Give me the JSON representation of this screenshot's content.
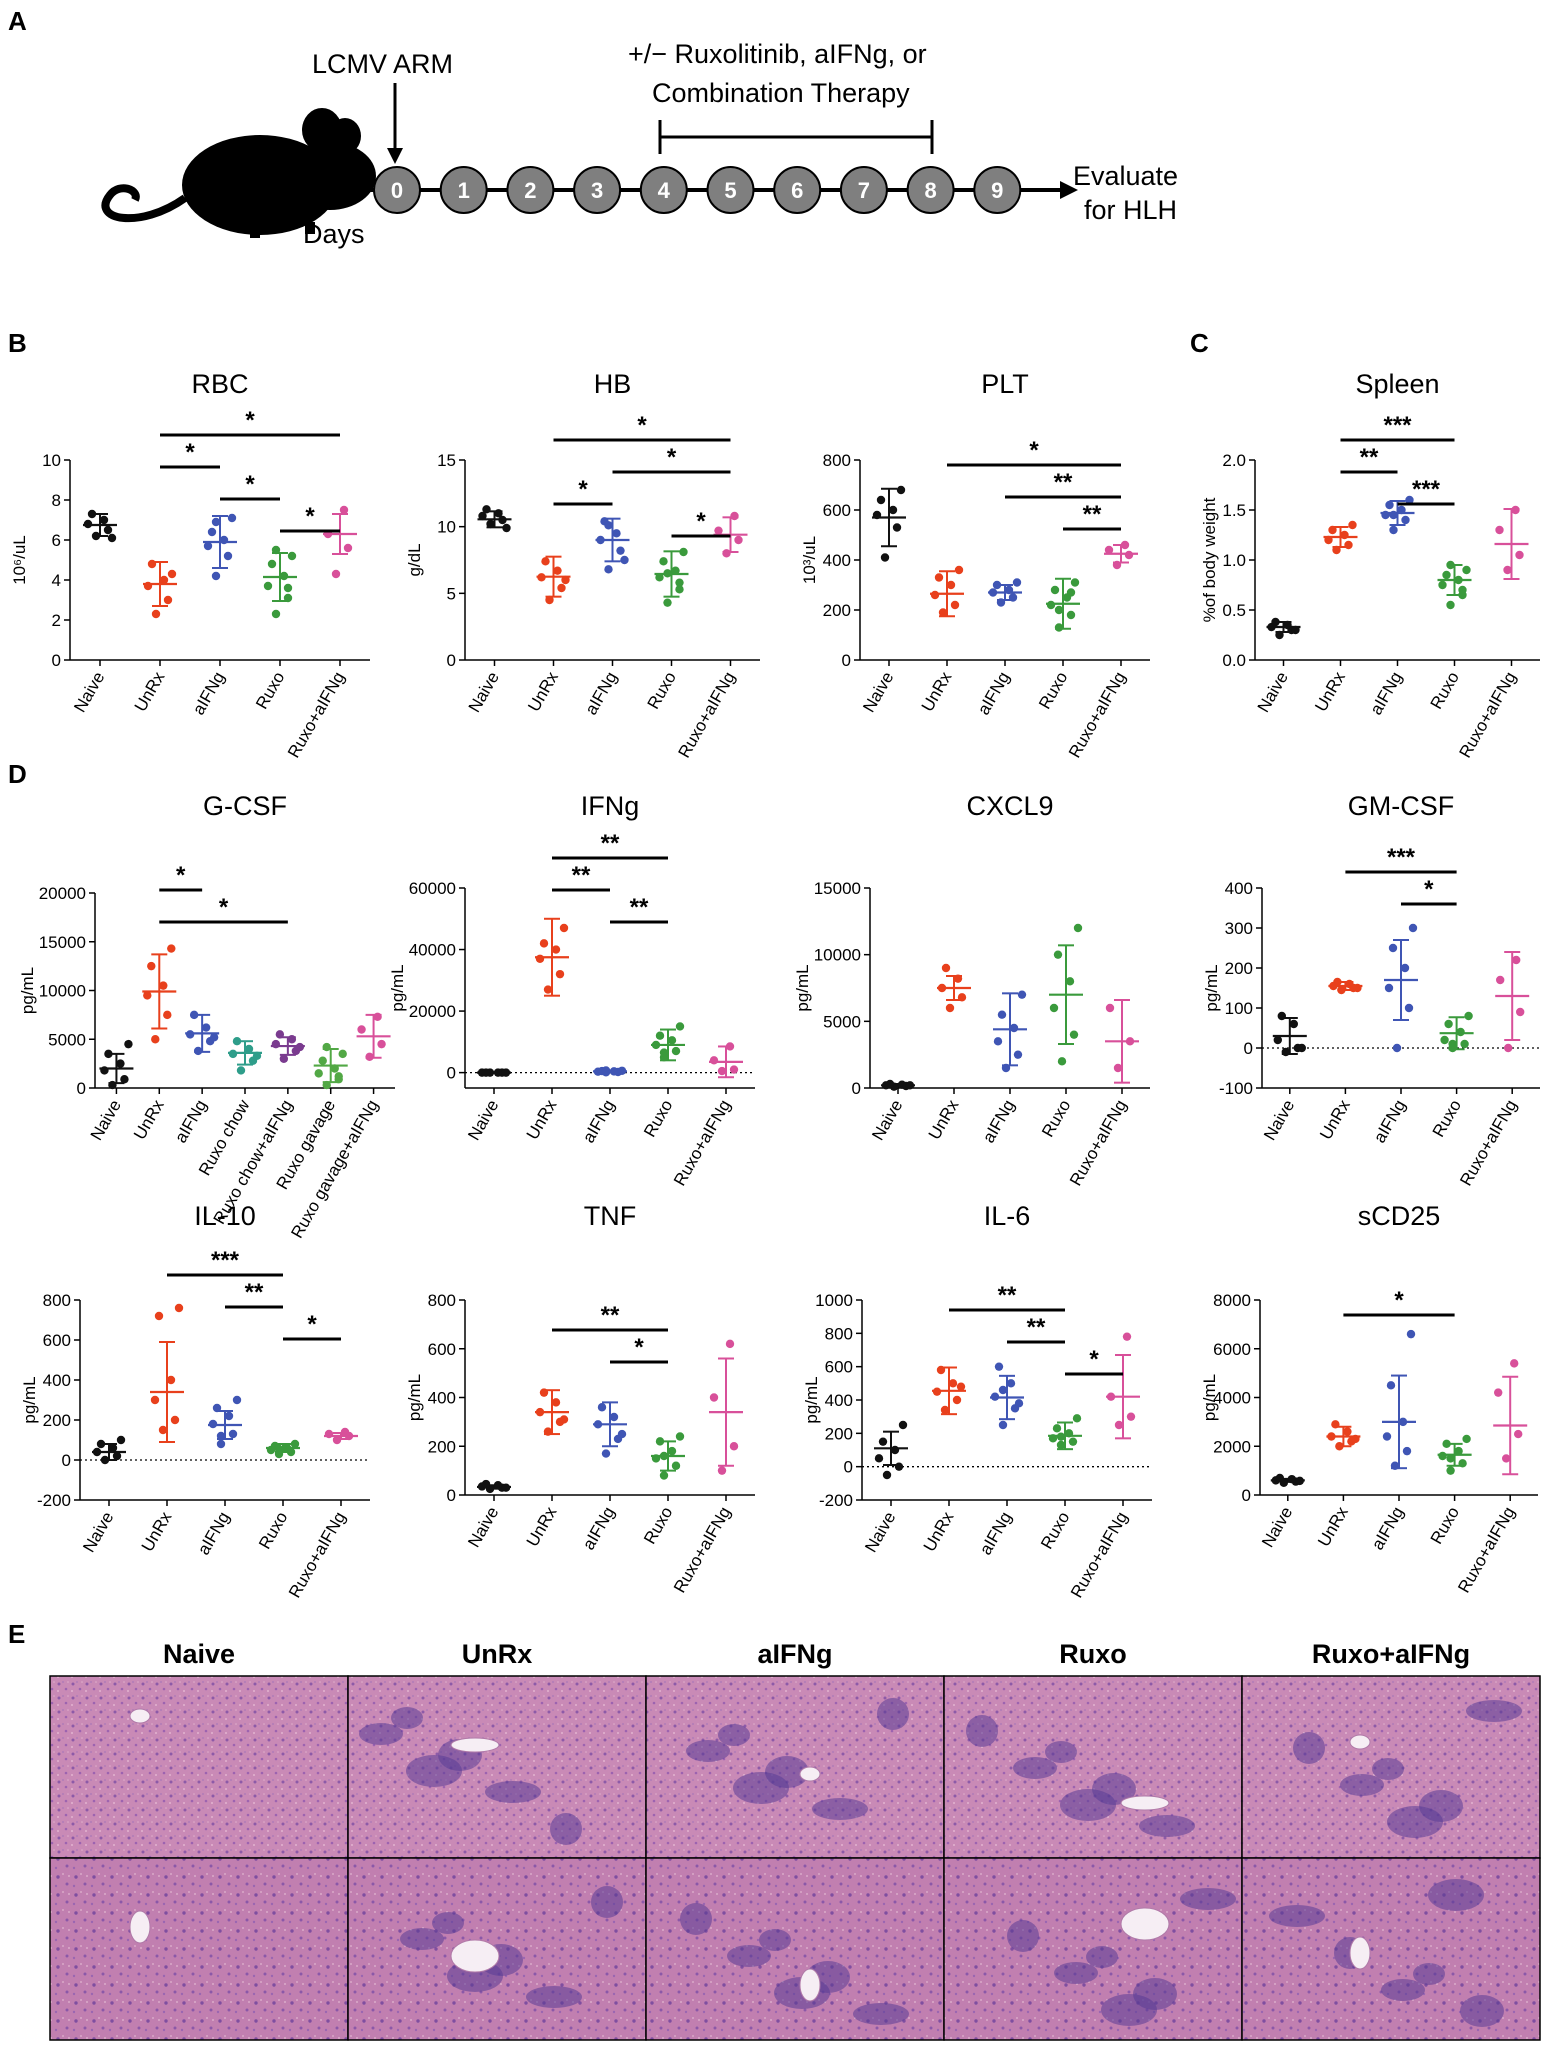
{
  "panel_labels": [
    "A",
    "B",
    "C",
    "D",
    "E"
  ],
  "timeline": {
    "infection_label": "LCMV ARM",
    "treatment_label_line1": "+/− Ruxolitinib, aIFNg, or",
    "treatment_label_line2": "Combination Therapy",
    "days": [
      "0",
      "1",
      "2",
      "3",
      "4",
      "5",
      "6",
      "7",
      "8",
      "9"
    ],
    "days_label": "Days",
    "end_label_line1": "Evaluate",
    "end_label_line2": "for HLH",
    "icon": "mouse-icon"
  },
  "colors": {
    "Naive": "#111111",
    "UnRx": "#e8401c",
    "aIFNg": "#3f55b4",
    "Ruxo": "#3a9a3c",
    "Ruxo+aIFNg": "#d8509a",
    "Ruxo chow": "#2e9d8a",
    "Ruxo chow+aIFNg": "#7a3b8f",
    "Ruxo gavage": "#52a845",
    "Ruxo gavage+aIFNg": "#d8509a"
  },
  "chart_data": [
    {
      "id": "rbc",
      "type": "scatter",
      "title": "RBC",
      "ylabel": "10⁶/uL",
      "ylim": [
        0,
        10
      ],
      "yticks": [
        0,
        2,
        4,
        6,
        8,
        10
      ],
      "categories": [
        "Naive",
        "UnRx",
        "aIFNg",
        "Ruxo",
        "Ruxo+aIFNg"
      ],
      "points": [
        [
          6.2,
          6.5,
          6.8,
          7.0,
          7.3,
          6.1
        ],
        [
          2.3,
          3.0,
          3.7,
          4.0,
          4.8,
          4.3
        ],
        [
          4.2,
          5.2,
          5.7,
          6.0,
          6.4,
          7.1,
          6.9
        ],
        [
          2.3,
          3.1,
          3.7,
          4.2,
          4.8,
          5.2,
          5.5,
          3.6
        ],
        [
          4.3,
          5.6,
          6.3,
          7.5
        ]
      ],
      "mean": [
        6.75,
        3.8,
        5.9,
        4.15,
        6.3
      ],
      "sd": [
        0.55,
        1.1,
        1.3,
        1.2,
        1.0
      ],
      "sig": [
        {
          "from": 1,
          "to": 4,
          "label": "*"
        },
        {
          "from": 1,
          "to": 2,
          "label": "*"
        },
        {
          "from": 2,
          "to": 3,
          "label": "*"
        },
        {
          "from": 3,
          "to": 4,
          "label": "*"
        }
      ]
    },
    {
      "id": "hb",
      "type": "scatter",
      "title": "HB",
      "ylabel": "g/dL",
      "ylim": [
        0,
        15
      ],
      "yticks": [
        0,
        5,
        10,
        15
      ],
      "categories": [
        "Naive",
        "UnRx",
        "aIFNg",
        "Ruxo",
        "Ruxo+aIFNg"
      ],
      "points": [
        [
          10.2,
          10.5,
          10.8,
          11.0,
          11.3,
          9.9
        ],
        [
          4.5,
          5.4,
          6.2,
          6.7,
          7.4,
          6.0
        ],
        [
          6.8,
          8.2,
          9.0,
          9.5,
          10.4,
          7.5,
          10.1
        ],
        [
          4.3,
          5.3,
          6.2,
          6.7,
          7.4,
          8.1,
          6.5,
          5.8
        ],
        [
          8.0,
          9.0,
          9.7,
          10.8
        ]
      ],
      "mean": [
        10.55,
        6.25,
        9.0,
        6.45,
        9.4
      ],
      "sd": [
        0.6,
        1.5,
        1.6,
        1.7,
        1.3
      ],
      "sig": [
        {
          "from": 1,
          "to": 4,
          "label": "*"
        },
        {
          "from": 2,
          "to": 4,
          "label": "*"
        },
        {
          "from": 1,
          "to": 2,
          "label": "*"
        },
        {
          "from": 3,
          "to": 4,
          "label": "*"
        }
      ]
    },
    {
      "id": "plt",
      "type": "scatter",
      "title": "PLT",
      "ylabel": "10³/uL",
      "ylim": [
        0,
        800
      ],
      "yticks": [
        0,
        200,
        400,
        600,
        800
      ],
      "categories": [
        "Naive",
        "UnRx",
        "aIFNg",
        "Ruxo",
        "Ruxo+aIFNg"
      ],
      "points": [
        [
          410,
          530,
          580,
          600,
          640,
          680
        ],
        [
          190,
          220,
          260,
          300,
          330,
          360
        ],
        [
          230,
          250,
          270,
          280,
          300,
          310
        ],
        [
          130,
          180,
          220,
          250,
          280,
          310,
          200,
          270
        ],
        [
          380,
          420,
          440,
          460
        ]
      ],
      "mean": [
        570,
        265,
        270,
        225,
        425
      ],
      "sd": [
        115,
        90,
        30,
        100,
        35
      ],
      "sig": [
        {
          "from": 1,
          "to": 4,
          "label": "*"
        },
        {
          "from": 2,
          "to": 4,
          "label": "**"
        },
        {
          "from": 3,
          "to": 4,
          "label": "**"
        }
      ]
    },
    {
      "id": "spleen",
      "type": "scatter",
      "title": "Spleen",
      "ylabel": "%of body weight",
      "ylim": [
        0,
        2.0
      ],
      "yticks": [
        0.0,
        0.5,
        1.0,
        1.5,
        2.0
      ],
      "categories": [
        "Naive",
        "UnRx",
        "aIFNg",
        "Ruxo",
        "Ruxo+aIFNg"
      ],
      "points": [
        [
          0.25,
          0.3,
          0.33,
          0.35,
          0.38,
          0.3
        ],
        [
          1.1,
          1.15,
          1.2,
          1.25,
          1.3,
          1.35
        ],
        [
          1.3,
          1.4,
          1.45,
          1.5,
          1.55,
          1.6,
          1.45
        ],
        [
          0.55,
          0.65,
          0.75,
          0.8,
          0.85,
          0.9,
          0.95,
          0.7
        ],
        [
          0.9,
          1.05,
          1.3,
          1.5
        ]
      ],
      "mean": [
        0.33,
        1.23,
        1.47,
        0.8,
        1.16
      ],
      "sd": [
        0.05,
        0.1,
        0.12,
        0.15,
        0.35
      ],
      "sig": [
        {
          "from": 1,
          "to": 3,
          "label": "***"
        },
        {
          "from": 1,
          "to": 2,
          "label": "**"
        },
        {
          "from": 2,
          "to": 3,
          "label": "***"
        }
      ]
    },
    {
      "id": "gcsf",
      "type": "scatter",
      "title": "G-CSF",
      "ylabel": "pg/mL",
      "ylim": [
        0,
        20000
      ],
      "yticks": [
        0,
        5000,
        10000,
        15000,
        20000
      ],
      "categories": [
        "Naive",
        "UnRx",
        "aIFNg",
        "Ruxo chow",
        "Ruxo chow+aIFNg",
        "Ruxo gavage",
        "Ruxo gavage+aIFNg"
      ],
      "points": [
        [
          300,
          900,
          1800,
          2500,
          3500,
          4500
        ],
        [
          5000,
          7500,
          9500,
          10500,
          12500,
          14300
        ],
        [
          3800,
          4800,
          5500,
          6200,
          7500,
          5200
        ],
        [
          1800,
          2800,
          3500,
          4000,
          4800,
          3300
        ],
        [
          3000,
          3800,
          4500,
          5000,
          5500,
          4200
        ],
        [
          300,
          900,
          1500,
          2000,
          2800,
          3500,
          4200,
          1200
        ],
        [
          3200,
          4500,
          6000,
          7300
        ]
      ],
      "mean": [
        2000,
        9900,
        5600,
        3600,
        4300,
        2300,
        5300
      ],
      "sd": [
        1500,
        3800,
        1900,
        1200,
        900,
        1700,
        2200
      ],
      "sig": [
        {
          "from": 1,
          "to": 2,
          "label": "*"
        },
        {
          "from": 1,
          "to": 4,
          "label": "*"
        }
      ]
    },
    {
      "id": "ifng",
      "type": "scatter",
      "title": "IFNg",
      "ylabel": "pg/mL",
      "ylim": [
        -5000,
        60000
      ],
      "yticks": [
        0,
        20000,
        40000,
        60000
      ],
      "zero_line": true,
      "categories": [
        "Naive",
        "UnRx",
        "aIFNg",
        "Ruxo",
        "Ruxo+aIFNg"
      ],
      "points": [
        [
          0,
          0,
          0,
          0,
          0,
          0
        ],
        [
          27000,
          32000,
          37000,
          40000,
          42000,
          47000
        ],
        [
          100,
          200,
          300,
          400,
          500,
          600,
          700
        ],
        [
          5000,
          7000,
          9000,
          10500,
          12000,
          15000,
          6500
        ],
        [
          500,
          1000,
          4000,
          8500
        ]
      ],
      "mean": [
        0,
        37500,
        400,
        9000,
        3500
      ],
      "sd": [
        0,
        12500,
        300,
        5000,
        5000
      ],
      "sig": [
        {
          "from": 1,
          "to": 3,
          "label": "**"
        },
        {
          "from": 1,
          "to": 2,
          "label": "**"
        },
        {
          "from": 2,
          "to": 3,
          "label": "**"
        }
      ]
    },
    {
      "id": "cxcl9",
      "type": "scatter",
      "title": "CXCL9",
      "ylabel": "pg/mL",
      "ylim": [
        0,
        15000
      ],
      "yticks": [
        0,
        5000,
        10000,
        15000
      ],
      "categories": [
        "Naive",
        "UnRx",
        "aIFNg",
        "Ruxo",
        "Ruxo+aIFNg"
      ],
      "points": [
        [
          100,
          150,
          200,
          250,
          300,
          200
        ],
        [
          6000,
          6800,
          7500,
          8200,
          9000
        ],
        [
          1500,
          2500,
          3500,
          4500,
          5500,
          7000
        ],
        [
          2000,
          4000,
          6000,
          8000,
          10000,
          12000
        ],
        [
          1500,
          3500,
          6000
        ]
      ],
      "mean": [
        200,
        7500,
        4400,
        7000,
        3500
      ],
      "sd": [
        100,
        900,
        2700,
        3700,
        3100
      ],
      "sig": []
    },
    {
      "id": "gmcsf",
      "type": "scatter",
      "title": "GM-CSF",
      "ylabel": "pg/mL",
      "ylim": [
        -100,
        400
      ],
      "yticks": [
        -100,
        0,
        100,
        200,
        300,
        400
      ],
      "zero_line": true,
      "categories": [
        "Naive",
        "UnRx",
        "aIFNg",
        "Ruxo",
        "Ruxo+aIFNg"
      ],
      "points": [
        [
          -10,
          0,
          20,
          60,
          80,
          0
        ],
        [
          145,
          150,
          155,
          160,
          165,
          150
        ],
        [
          0,
          100,
          150,
          200,
          250,
          300
        ],
        [
          0,
          10,
          20,
          40,
          60,
          80,
          10
        ],
        [
          0,
          90,
          170,
          220
        ]
      ],
      "mean": [
        30,
        155,
        170,
        37,
        130
      ],
      "sd": [
        45,
        10,
        100,
        40,
        110
      ],
      "sig": [
        {
          "from": 1,
          "to": 3,
          "label": "***"
        },
        {
          "from": 2,
          "to": 3,
          "label": "*"
        }
      ]
    },
    {
      "id": "il10",
      "type": "scatter",
      "title": "IL-10",
      "ylabel": "pg/mL",
      "ylim": [
        -200,
        800
      ],
      "yticks": [
        -200,
        0,
        200,
        400,
        600,
        800
      ],
      "zero_line": true,
      "categories": [
        "Naive",
        "UnRx",
        "aIFNg",
        "Ruxo",
        "Ruxo+aIFNg"
      ],
      "points": [
        [
          0,
          20,
          40,
          60,
          80,
          100
        ],
        [
          150,
          200,
          300,
          400,
          720,
          760
        ],
        [
          80,
          130,
          180,
          220,
          260,
          300,
          120
        ],
        [
          30,
          40,
          50,
          60,
          70,
          80,
          55
        ],
        [
          100,
          120,
          130,
          140
        ]
      ],
      "mean": [
        40,
        340,
        175,
        60,
        120
      ],
      "sd": [
        40,
        250,
        70,
        20,
        15
      ],
      "sig": [
        {
          "from": 1,
          "to": 3,
          "label": "***"
        },
        {
          "from": 2,
          "to": 3,
          "label": "**"
        },
        {
          "from": 3,
          "to": 4,
          "label": "*"
        }
      ]
    },
    {
      "id": "tnf",
      "type": "scatter",
      "title": "TNF",
      "ylabel": "pg/mL",
      "ylim": [
        0,
        800
      ],
      "yticks": [
        0,
        200,
        400,
        600,
        800
      ],
      "categories": [
        "Naive",
        "UnRx",
        "aIFNg",
        "Ruxo",
        "Ruxo+aIFNg"
      ],
      "points": [
        [
          25,
          30,
          35,
          40,
          45,
          30
        ],
        [
          260,
          300,
          340,
          380,
          420,
          310
        ],
        [
          170,
          230,
          290,
          320,
          360,
          250
        ],
        [
          80,
          120,
          150,
          180,
          220,
          240,
          160
        ],
        [
          100,
          200,
          400,
          620
        ]
      ],
      "mean": [
        33,
        340,
        290,
        160,
        340
      ],
      "sd": [
        7,
        90,
        90,
        60,
        220
      ],
      "sig": [
        {
          "from": 1,
          "to": 3,
          "label": "**"
        },
        {
          "from": 2,
          "to": 3,
          "label": "*"
        }
      ]
    },
    {
      "id": "il6",
      "type": "scatter",
      "title": "IL-6",
      "ylabel": "pg/mL",
      "ylim": [
        -200,
        1000
      ],
      "yticks": [
        -200,
        0,
        200,
        400,
        600,
        800,
        1000
      ],
      "zero_line": true,
      "categories": [
        "Naive",
        "UnRx",
        "aIFNg",
        "Ruxo",
        "Ruxo+aIFNg"
      ],
      "points": [
        [
          -50,
          0,
          50,
          100,
          150,
          250
        ],
        [
          340,
          400,
          450,
          500,
          580,
          480
        ],
        [
          250,
          350,
          420,
          500,
          600,
          380,
          460
        ],
        [
          130,
          150,
          170,
          200,
          230,
          290,
          180
        ],
        [
          250,
          300,
          420,
          780
        ]
      ],
      "mean": [
        110,
        455,
        415,
        185,
        420
      ],
      "sd": [
        100,
        140,
        130,
        80,
        250
      ],
      "sig": [
        {
          "from": 1,
          "to": 3,
          "label": "**"
        },
        {
          "from": 2,
          "to": 3,
          "label": "**"
        },
        {
          "from": 3,
          "to": 4,
          "label": "*"
        }
      ]
    },
    {
      "id": "scd25",
      "type": "scatter",
      "title": "sCD25",
      "ylabel": "pg/mL",
      "ylim": [
        0,
        8000
      ],
      "yticks": [
        0,
        2000,
        4000,
        6000,
        8000
      ],
      "categories": [
        "Naive",
        "UnRx",
        "aIFNg",
        "Ruxo",
        "Ruxo+aIFNg"
      ],
      "points": [
        [
          500,
          550,
          600,
          650,
          700,
          580
        ],
        [
          2000,
          2200,
          2400,
          2600,
          2900,
          2300
        ],
        [
          1200,
          1800,
          2400,
          3000,
          4500,
          6600
        ],
        [
          1000,
          1300,
          1600,
          1800,
          2100,
          2300,
          1500
        ],
        [
          1500,
          2500,
          4200,
          5400
        ]
      ],
      "mean": [
        600,
        2400,
        3000,
        1650,
        2850
      ],
      "sd": [
        60,
        400,
        1900,
        450,
        2000
      ],
      "sig": [
        {
          "from": 1,
          "to": 3,
          "label": "*"
        }
      ]
    }
  ],
  "histology": {
    "labels": [
      "Naive",
      "UnRx",
      "aIFNg",
      "Ruxo",
      "Ruxo+aIFNg"
    ],
    "rows": 2
  }
}
